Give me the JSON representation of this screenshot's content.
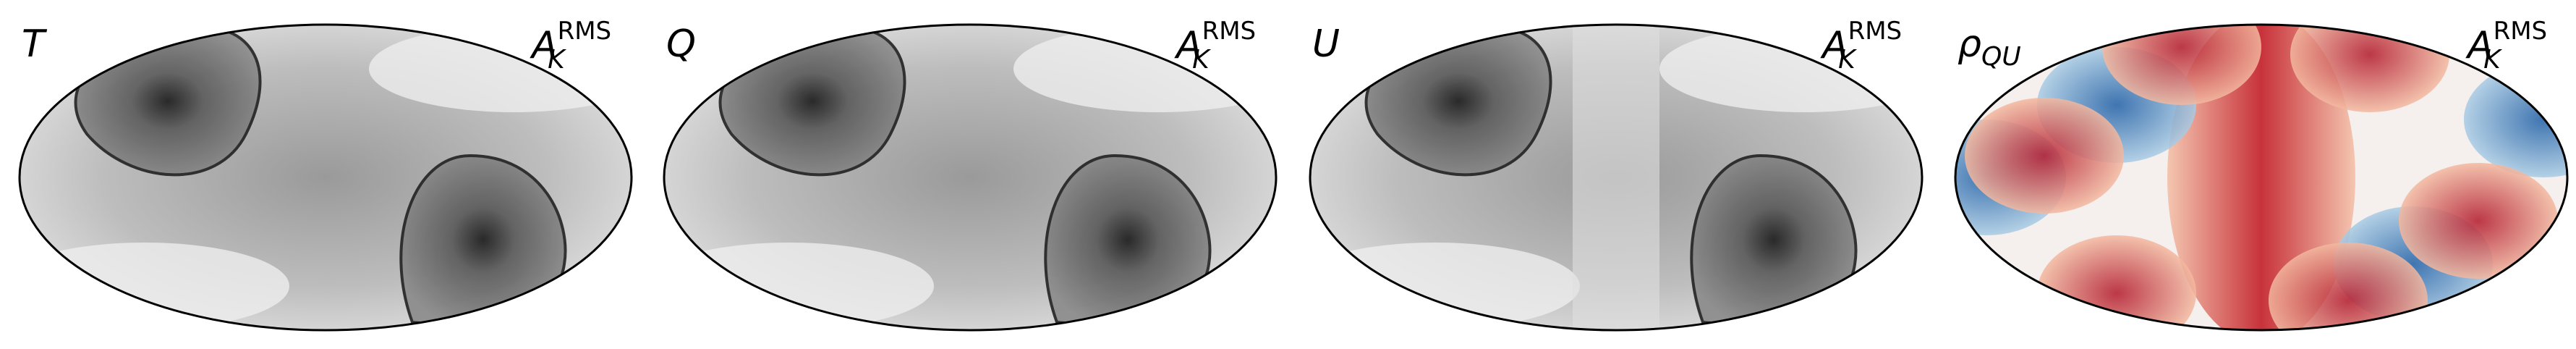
{
  "panels": [
    {
      "label": "T",
      "label_sub": null,
      "quantity": "A",
      "quantity_sub": "K",
      "quantity_sup": "RMS",
      "colormap": "gray"
    },
    {
      "label": "Q",
      "label_sub": null,
      "quantity": "A",
      "quantity_sub": "K",
      "quantity_sup": "RMS",
      "colormap": "gray"
    },
    {
      "label": "U",
      "label_sub": null,
      "quantity": "A",
      "quantity_sub": "K",
      "quantity_sup": "RMS",
      "colormap": "gray"
    },
    {
      "label": "ρ",
      "label_sub": "QU",
      "quantity": "A",
      "quantity_sub": "K",
      "quantity_sup": "RMS",
      "colormap": "RdBu"
    }
  ]
}
